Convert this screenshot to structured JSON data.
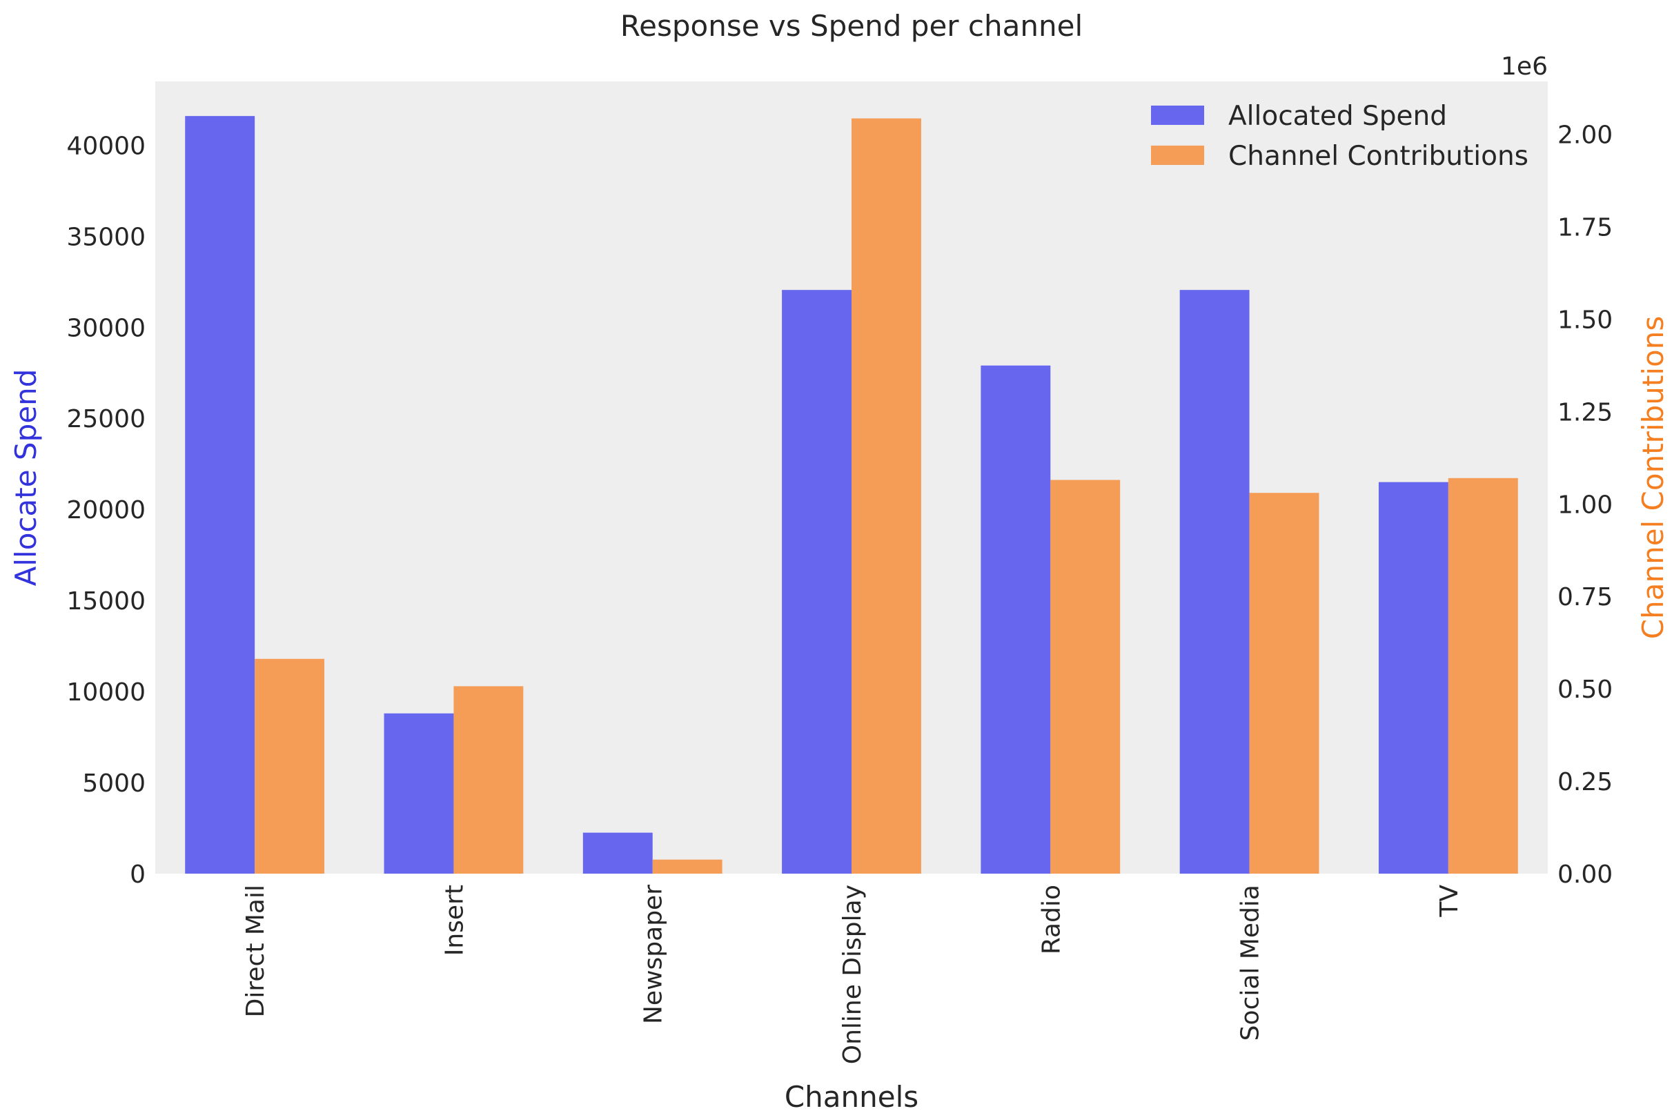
{
  "chart_data": {
    "type": "bar",
    "title": "Response vs Spend per channel",
    "xlabel": "Channels",
    "ylabel_left": "Allocate Spend",
    "ylabel_right": "Channel Contributions",
    "right_axis_offset_label": "1e6",
    "categories": [
      "Direct Mail",
      "Insert",
      "Newspaper",
      "Online Display",
      "Radio",
      "Social Media",
      "TV"
    ],
    "series": [
      {
        "name": "Allocated Spend",
        "axis": "left",
        "color": "#6666EE",
        "values": [
          41600,
          8800,
          2250,
          32050,
          27900,
          32050,
          21500
        ]
      },
      {
        "name": "Channel Contributions",
        "axis": "right",
        "color": "#F59D57",
        "values": [
          581000,
          507000,
          38000,
          2043000,
          1065000,
          1030000,
          1070000
        ]
      }
    ],
    "ylim_left": [
      0,
      43500
    ],
    "yticks_left": [
      "0",
      "5000",
      "10000",
      "15000",
      "20000",
      "25000",
      "30000",
      "35000",
      "40000"
    ],
    "ylim_right": [
      0,
      2143000
    ],
    "yticks_right": [
      "0.00",
      "0.25",
      "0.50",
      "0.75",
      "1.00",
      "1.25",
      "1.50",
      "1.75",
      "2.00"
    ],
    "grid": false,
    "legend_position": "top-right",
    "left_label_color": "#3333DD",
    "right_label_color": "#F57F20",
    "plot_background": "#EEEEEE"
  }
}
